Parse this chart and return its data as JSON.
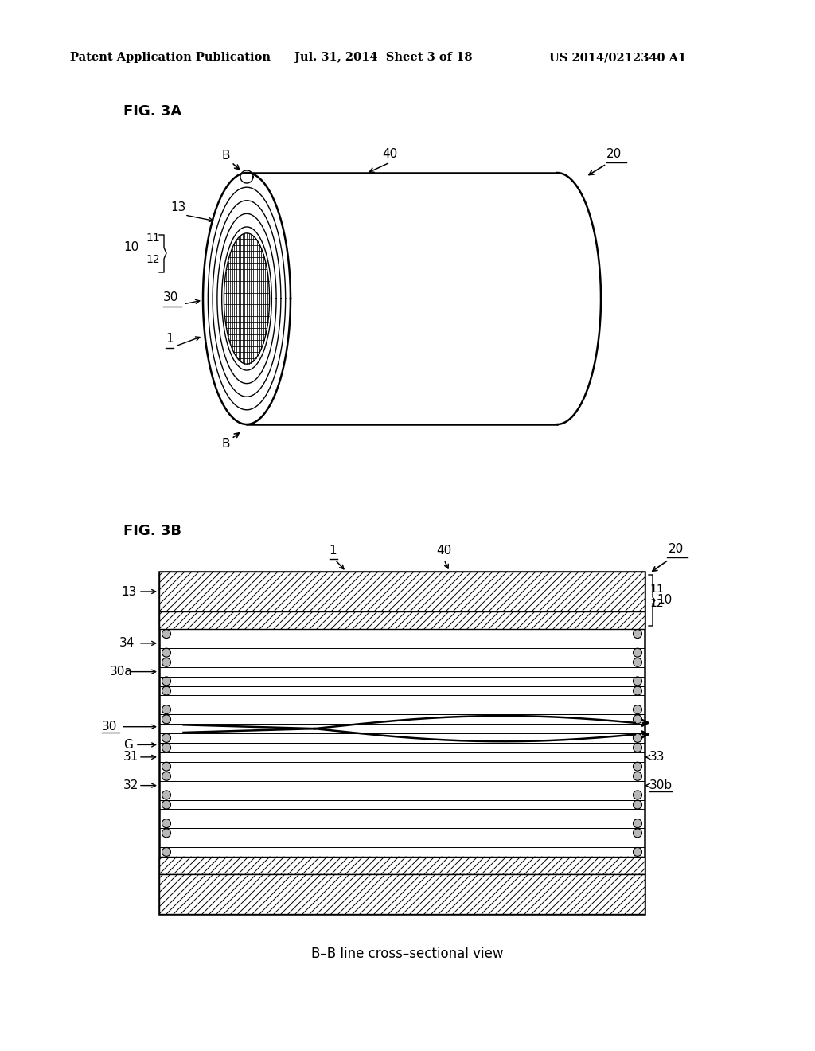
{
  "bg_color": "#ffffff",
  "line_color": "#000000",
  "header_left": "Patent Application Publication",
  "header_mid": "Jul. 31, 2014  Sheet 3 of 18",
  "header_right": "US 2014/0212340 A1",
  "fig3a_label": "FIG. 3A",
  "fig3b_label": "FIG. 3B",
  "caption": "B–B line cross–sectional view"
}
